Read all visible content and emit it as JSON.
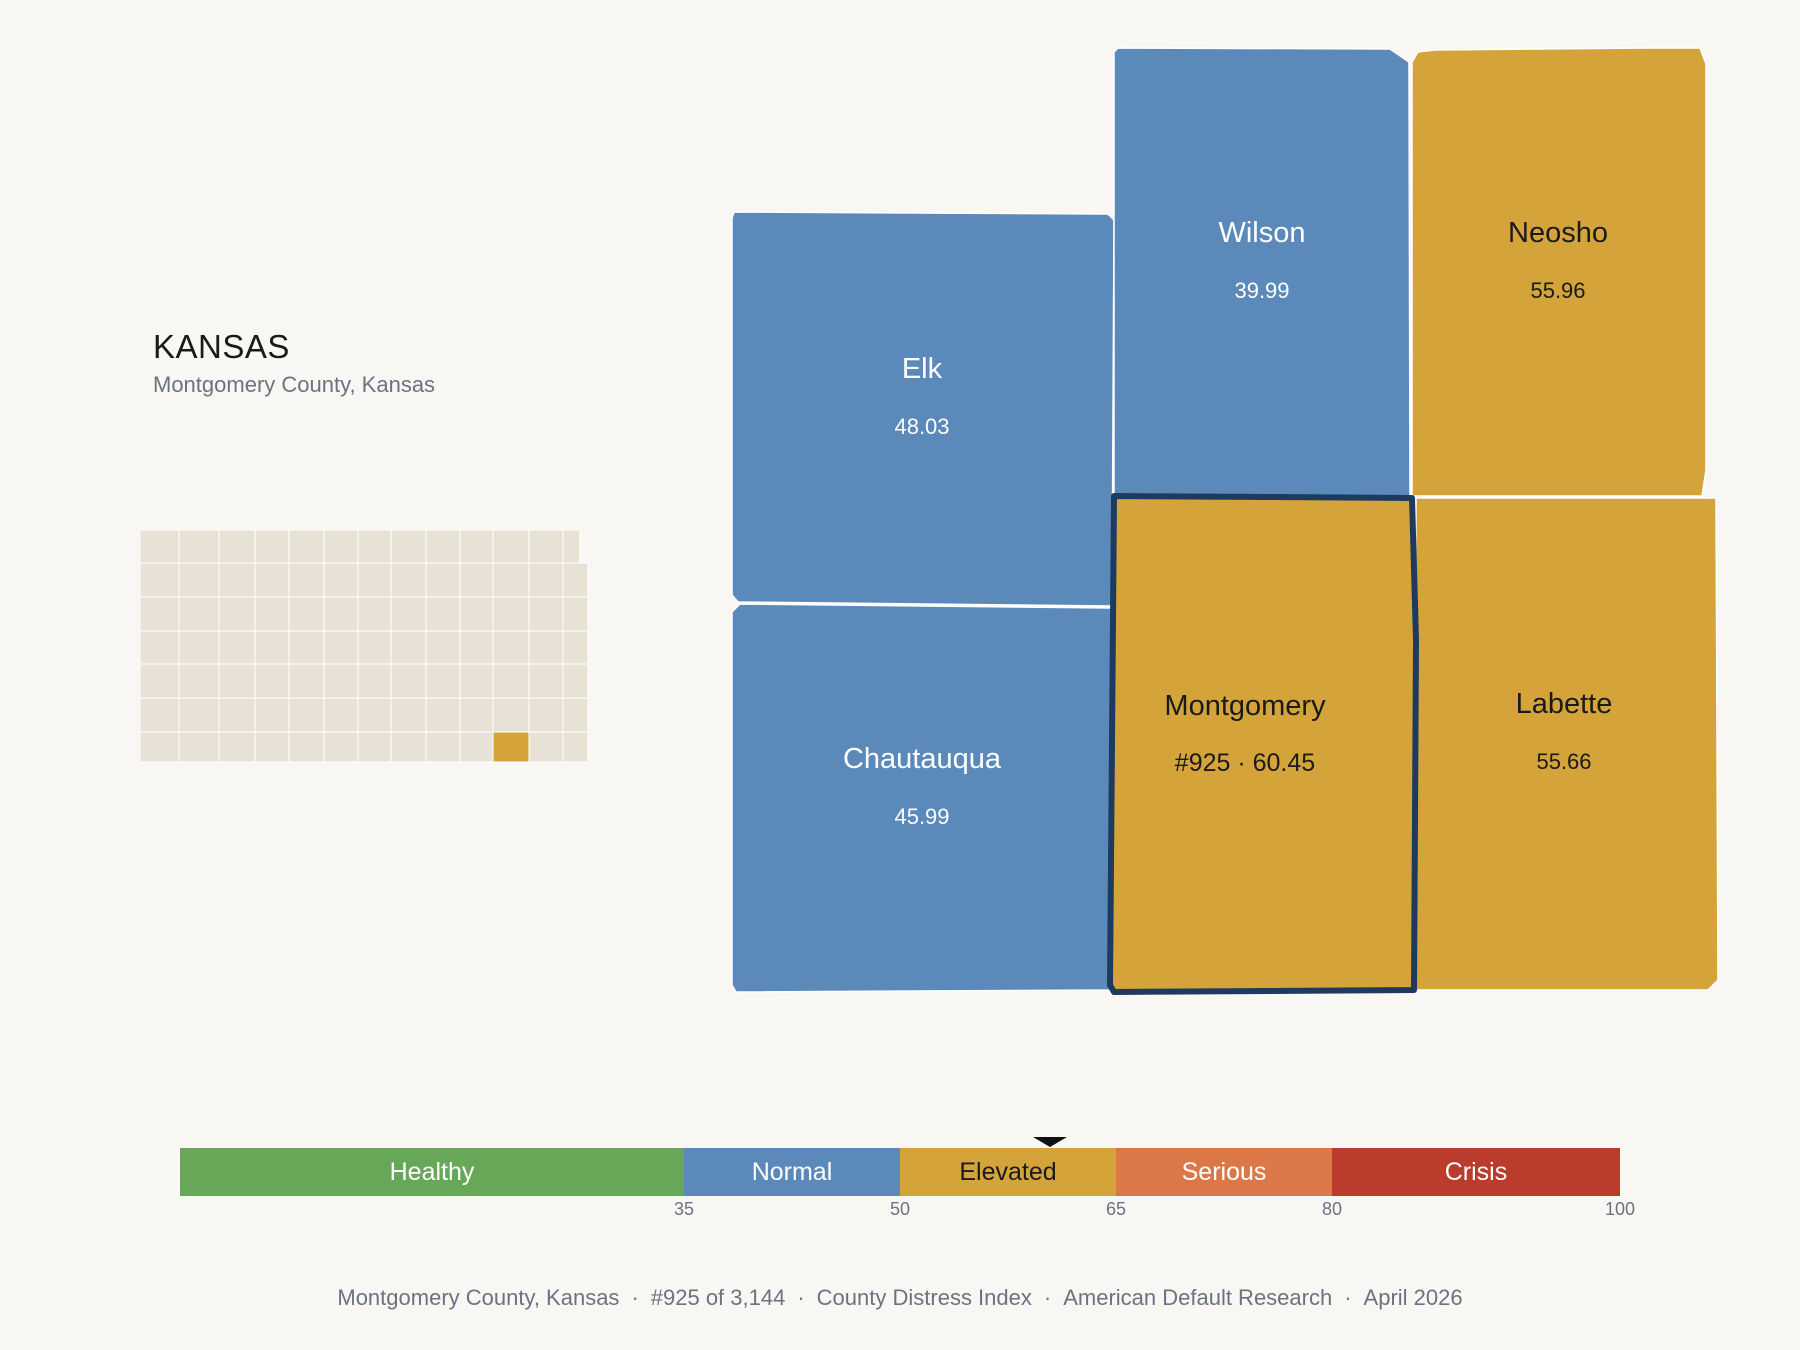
{
  "header": {
    "state": "KANSAS",
    "subtitle": "Montgomery County, Kansas"
  },
  "colors": {
    "background": "#f9f7f3",
    "locator_fill": "#e8e2d6",
    "locator_highlight": "#d4a43a",
    "normal": "#5b8aba",
    "elevated": "#d4a43a",
    "selected_outline": "#1e3a5f"
  },
  "counties": [
    {
      "name": "Elk",
      "value": "48.03",
      "category": "normal"
    },
    {
      "name": "Wilson",
      "value": "39.99",
      "category": "normal"
    },
    {
      "name": "Neosho",
      "value": "55.96",
      "category": "elevated"
    },
    {
      "name": "Chautauqua",
      "value": "45.99",
      "category": "normal"
    },
    {
      "name": "Montgomery",
      "value": "#925 · 60.45",
      "category": "elevated",
      "selected": true
    },
    {
      "name": "Labette",
      "value": "55.66",
      "category": "elevated"
    }
  ],
  "legend": {
    "min": 0,
    "max": 100,
    "current_value": 60.45,
    "segments": [
      {
        "label": "Healthy",
        "from": 0,
        "to": 35,
        "color": "#67a758",
        "text_color": "#ffffff"
      },
      {
        "label": "Normal",
        "from": 35,
        "to": 50,
        "color": "#5b8aba",
        "text_color": "#ffffff"
      },
      {
        "label": "Elevated",
        "from": 50,
        "to": 65,
        "color": "#d4a43a",
        "text_color": "#1a1a1a"
      },
      {
        "label": "Serious",
        "from": 65,
        "to": 80,
        "color": "#dc7848",
        "text_color": "#ffffff"
      },
      {
        "label": "Crisis",
        "from": 80,
        "to": 100,
        "color": "#b93c2c",
        "text_color": "#ffffff"
      }
    ],
    "ticks": [
      "35",
      "50",
      "65",
      "80",
      "100"
    ]
  },
  "footer": {
    "items": [
      "Montgomery County, Kansas",
      "#925 of 3,144",
      "County Distress Index",
      "American Default Research",
      "April 2026"
    ]
  }
}
